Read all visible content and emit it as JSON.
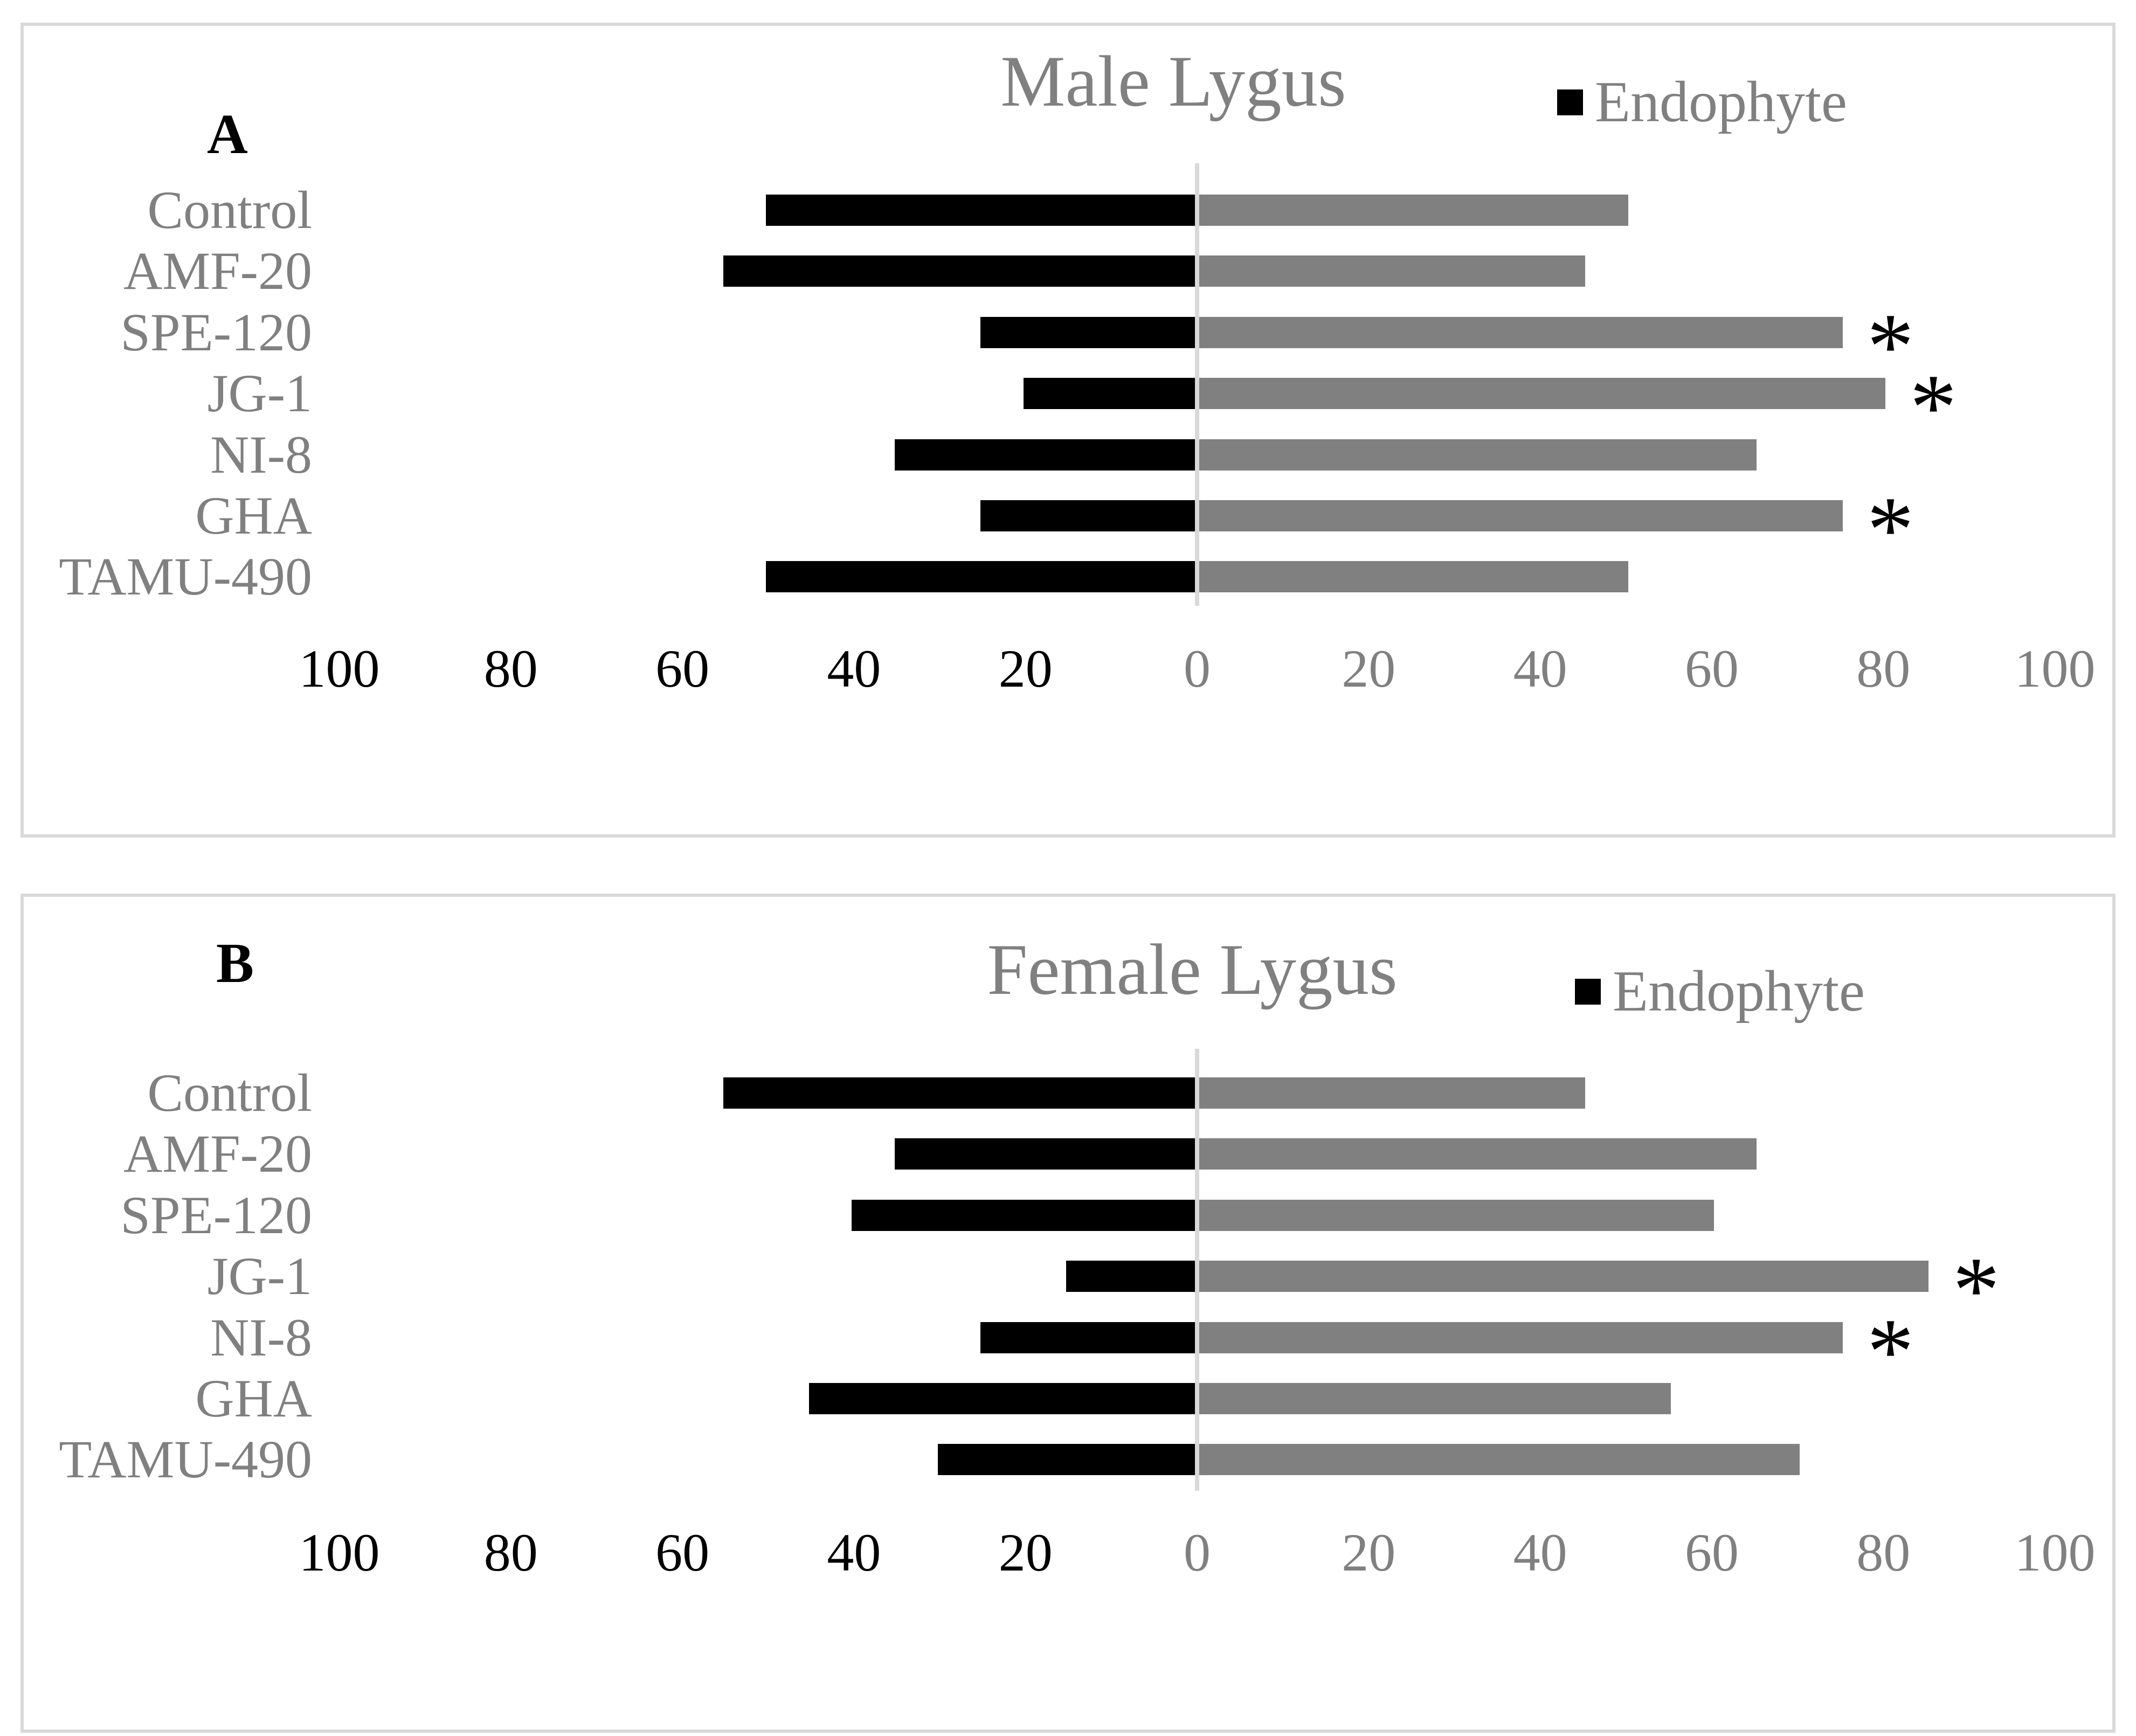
{
  "figure": {
    "background": "#ffffff",
    "significance_marker": "*"
  },
  "colors": {
    "endophyte_bar": "#000000",
    "opposite_bar": "#808080",
    "axis_line": "#d9d9d9",
    "panel_border": "#d9d9d9",
    "title_text": "#808080",
    "category_text": "#808080",
    "left_tick_text": "#000000",
    "right_tick_text": "#808080",
    "panel_label_text": "#000000",
    "asterisk_text": "#000000"
  },
  "chart_data": [
    {
      "type": "bar",
      "subtype": "horizontal-diverging",
      "panel_label": "A",
      "title": "Male Lygus",
      "legend_label": "Endophyte",
      "legend_position": "top-right",
      "grid": "off",
      "xlim": [
        -100,
        100
      ],
      "axis_ticks": [
        100,
        80,
        60,
        40,
        20,
        0,
        20,
        40,
        60,
        80,
        100
      ],
      "categories": [
        "Control",
        "AMF-20",
        "SPE-120",
        "JG-1",
        "NI-8",
        "GHA",
        "TAMU-490"
      ],
      "series": [
        {
          "name": "Endophyte",
          "side": "left",
          "color": "#000000",
          "values": [
            50,
            55,
            25,
            20,
            35,
            25,
            50
          ]
        },
        {
          "name": "",
          "side": "right",
          "color": "#808080",
          "values": [
            50,
            45,
            75,
            80,
            65,
            75,
            50
          ]
        }
      ],
      "significant": [
        false,
        false,
        true,
        true,
        false,
        true,
        false
      ]
    },
    {
      "type": "bar",
      "subtype": "horizontal-diverging",
      "panel_label": "B",
      "title": "Female Lygus",
      "legend_label": "Endophyte",
      "legend_position": "top-right",
      "grid": "off",
      "xlim": [
        -100,
        100
      ],
      "axis_ticks": [
        100,
        80,
        60,
        40,
        20,
        0,
        20,
        40,
        60,
        80,
        100
      ],
      "categories": [
        "Control",
        "AMF-20",
        "SPE-120",
        "JG-1",
        "NI-8",
        "GHA",
        "TAMU-490"
      ],
      "series": [
        {
          "name": "Endophyte",
          "side": "left",
          "color": "#000000",
          "values": [
            55,
            35,
            40,
            15,
            25,
            45,
            30
          ]
        },
        {
          "name": "",
          "side": "right",
          "color": "#808080",
          "values": [
            45,
            65,
            60,
            85,
            75,
            55,
            70
          ]
        }
      ],
      "significant": [
        false,
        false,
        false,
        true,
        true,
        false,
        false
      ]
    }
  ]
}
